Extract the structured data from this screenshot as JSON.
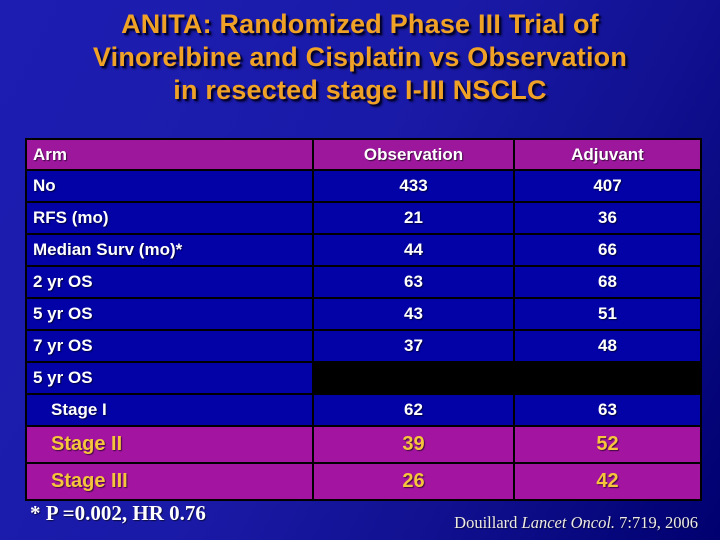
{
  "slide": {
    "title_lines": [
      "ANITA:  Randomized Phase III Trial of",
      "Vinorelbine and Cisplatin vs Observation",
      "in resected stage I-III NSCLC"
    ],
    "footnote": "* P =0.002, HR 0.76",
    "citation": {
      "author": "Douillard ",
      "journal": "Lancet Oncol.",
      "reference": " 7:719, 2006"
    }
  },
  "table": {
    "headers": [
      "Arm",
      "Observation",
      "Adjuvant"
    ],
    "rows": [
      {
        "label": "No",
        "observation": "433",
        "adjuvant": "407"
      },
      {
        "label": "RFS (mo)",
        "observation": "21",
        "adjuvant": "36"
      },
      {
        "label": "Median Surv (mo)*",
        "observation": "44",
        "adjuvant": "66"
      },
      {
        "label": "2 yr OS",
        "observation": "63",
        "adjuvant": "68"
      },
      {
        "label": "5 yr OS",
        "observation": "43",
        "adjuvant": "51"
      },
      {
        "label": "7 yr OS",
        "observation": "37",
        "adjuvant": "48"
      },
      {
        "label": "5 yr OS",
        "observation": "",
        "adjuvant": ""
      },
      {
        "label": "Stage I",
        "observation": "62",
        "adjuvant": "63"
      },
      {
        "label": "Stage II",
        "observation": "39",
        "adjuvant": "52"
      },
      {
        "label": "Stage III",
        "observation": "26",
        "adjuvant": "42"
      }
    ]
  },
  "colors": {
    "background_top": "#1d1db2",
    "background_bottom": "#000070",
    "title_gold": "#f0a227",
    "header_magenta": "#9d179d",
    "stage_magenta": "#a315a0",
    "cell_blue": "#0202a6",
    "redacted_black": "#000000",
    "stage_yellow": "#f6c53c",
    "text_white": "#ffffff"
  }
}
